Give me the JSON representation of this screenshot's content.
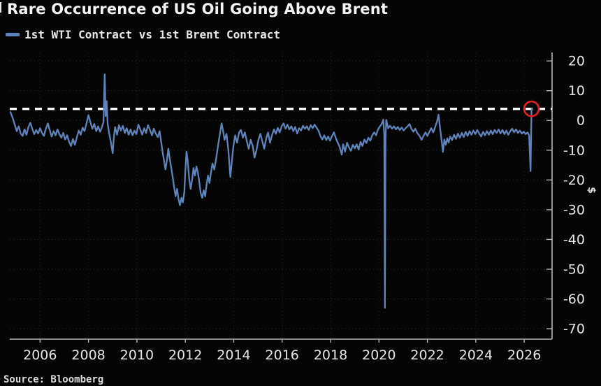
{
  "title": "Rare Occurrence of US Oil Going Above Brent",
  "legend": {
    "label": "1st WTI Contract vs 1st Brent Contract",
    "swatch_color": "#5e84ba"
  },
  "source": "Source: Bloomberg",
  "colors": {
    "background": "#050505",
    "line": "#5e84ba",
    "reference_line": "#ffffff",
    "annotation_circle": "#e02020",
    "axis": "#b5b5b5",
    "grid": "#2e2e2e",
    "tick_text": "#e6e6e6"
  },
  "chart_data": {
    "type": "line",
    "title": "Rare Occurrence of US Oil Going Above Brent",
    "xlabel": "",
    "ylabel": "$",
    "legend_position": "top-left",
    "grid": "dotted horizontal and vertical",
    "x_ticks": [
      2006,
      2008,
      2010,
      2012,
      2014,
      2016,
      2018,
      2020,
      2022,
      2024,
      2026
    ],
    "y_ticks": [
      20,
      10,
      0,
      -10,
      -20,
      -30,
      -40,
      -50,
      -60,
      -70
    ],
    "xlim": [
      2004.75,
      2027.15
    ],
    "ylim": [
      -73.5,
      22.85
    ],
    "reference_line": {
      "value": 3.9,
      "style": "dashed",
      "color": "#ffffff"
    },
    "annotation": {
      "type": "circle",
      "x": 2026.3,
      "y": 3.9,
      "color": "#e02020",
      "meaning": "latest value highlighted - WTI above Brent"
    },
    "series": [
      {
        "name": "1st WTI Contract vs 1st Brent Contract",
        "color": "#5e84ba",
        "points": [
          [
            2004.78,
            2.8
          ],
          [
            2004.88,
            0.6
          ],
          [
            2004.96,
            -1.6
          ],
          [
            2005.04,
            -3.6
          ],
          [
            2005.12,
            -2.0
          ],
          [
            2005.2,
            -4.4
          ],
          [
            2005.28,
            -5.2
          ],
          [
            2005.36,
            -3.0
          ],
          [
            2005.44,
            -4.8
          ],
          [
            2005.52,
            -2.2
          ],
          [
            2005.6,
            -0.8
          ],
          [
            2005.68,
            -2.8
          ],
          [
            2005.76,
            -4.6
          ],
          [
            2005.84,
            -3.2
          ],
          [
            2005.92,
            -4.4
          ],
          [
            2006.0,
            -2.6
          ],
          [
            2006.08,
            -4.2
          ],
          [
            2006.16,
            -5.2
          ],
          [
            2006.24,
            -2.8
          ],
          [
            2006.32,
            -1.0
          ],
          [
            2006.4,
            -3.2
          ],
          [
            2006.48,
            -5.4
          ],
          [
            2006.56,
            -3.6
          ],
          [
            2006.64,
            -5.0
          ],
          [
            2006.72,
            -3.0
          ],
          [
            2006.8,
            -4.6
          ],
          [
            2006.88,
            -5.8
          ],
          [
            2006.96,
            -4.2
          ],
          [
            2007.04,
            -6.4
          ],
          [
            2007.12,
            -5.0
          ],
          [
            2007.2,
            -7.2
          ],
          [
            2007.28,
            -8.6
          ],
          [
            2007.36,
            -6.2
          ],
          [
            2007.44,
            -8.2
          ],
          [
            2007.52,
            -5.6
          ],
          [
            2007.6,
            -3.4
          ],
          [
            2007.68,
            -4.8
          ],
          [
            2007.76,
            -2.4
          ],
          [
            2007.84,
            -3.6
          ],
          [
            2007.92,
            -1.0
          ],
          [
            2008.0,
            1.8
          ],
          [
            2008.08,
            -0.6
          ],
          [
            2008.16,
            -2.8
          ],
          [
            2008.24,
            -1.2
          ],
          [
            2008.32,
            -3.6
          ],
          [
            2008.4,
            -2.0
          ],
          [
            2008.48,
            -3.8
          ],
          [
            2008.56,
            -2.2
          ],
          [
            2008.62,
            -0.5
          ],
          [
            2008.67,
            15.5
          ],
          [
            2008.71,
            1.5
          ],
          [
            2008.75,
            6.5
          ],
          [
            2008.79,
            -1.0
          ],
          [
            2008.85,
            -4.0
          ],
          [
            2008.93,
            -7.5
          ],
          [
            2009.0,
            -11.0
          ],
          [
            2009.05,
            -5.5
          ],
          [
            2009.1,
            -2.2
          ],
          [
            2009.18,
            -4.8
          ],
          [
            2009.26,
            -1.6
          ],
          [
            2009.34,
            -3.4
          ],
          [
            2009.42,
            -1.8
          ],
          [
            2009.5,
            -4.2
          ],
          [
            2009.58,
            -2.6
          ],
          [
            2009.66,
            -4.8
          ],
          [
            2009.74,
            -3.0
          ],
          [
            2009.82,
            -5.0
          ],
          [
            2009.9,
            -3.4
          ],
          [
            2009.98,
            -4.6
          ],
          [
            2010.06,
            -1.4
          ],
          [
            2010.14,
            -3.0
          ],
          [
            2010.22,
            -4.8
          ],
          [
            2010.3,
            -2.6
          ],
          [
            2010.38,
            -4.2
          ],
          [
            2010.46,
            -1.6
          ],
          [
            2010.54,
            -3.2
          ],
          [
            2010.62,
            -5.0
          ],
          [
            2010.7,
            -2.8
          ],
          [
            2010.78,
            -4.4
          ],
          [
            2010.86,
            -5.6
          ],
          [
            2010.94,
            -3.6
          ],
          [
            2011.0,
            -7.0
          ],
          [
            2011.06,
            -10.5
          ],
          [
            2011.12,
            -13.5
          ],
          [
            2011.18,
            -16.5
          ],
          [
            2011.24,
            -13.5
          ],
          [
            2011.3,
            -9.5
          ],
          [
            2011.36,
            -13.0
          ],
          [
            2011.42,
            -16.0
          ],
          [
            2011.48,
            -19.0
          ],
          [
            2011.54,
            -22.5
          ],
          [
            2011.6,
            -25.5
          ],
          [
            2011.66,
            -23.0
          ],
          [
            2011.72,
            -26.5
          ],
          [
            2011.78,
            -28.5
          ],
          [
            2011.84,
            -26.0
          ],
          [
            2011.9,
            -27.5
          ],
          [
            2011.96,
            -24.0
          ],
          [
            2012.0,
            -17.0
          ],
          [
            2012.05,
            -10.5
          ],
          [
            2012.1,
            -13.5
          ],
          [
            2012.16,
            -19.5
          ],
          [
            2012.22,
            -23.0
          ],
          [
            2012.28,
            -20.0
          ],
          [
            2012.34,
            -16.0
          ],
          [
            2012.4,
            -18.5
          ],
          [
            2012.46,
            -15.5
          ],
          [
            2012.52,
            -17.5
          ],
          [
            2012.58,
            -21.0
          ],
          [
            2012.64,
            -24.5
          ],
          [
            2012.7,
            -26.0
          ],
          [
            2012.76,
            -23.5
          ],
          [
            2012.82,
            -25.5
          ],
          [
            2012.88,
            -21.5
          ],
          [
            2012.94,
            -18.5
          ],
          [
            2013.0,
            -21.0
          ],
          [
            2013.06,
            -17.5
          ],
          [
            2013.12,
            -14.5
          ],
          [
            2013.2,
            -16.5
          ],
          [
            2013.28,
            -12.5
          ],
          [
            2013.36,
            -8.0
          ],
          [
            2013.44,
            -4.0
          ],
          [
            2013.5,
            -1.0
          ],
          [
            2013.56,
            -3.5
          ],
          [
            2013.62,
            -6.5
          ],
          [
            2013.7,
            -4.5
          ],
          [
            2013.78,
            -10.0
          ],
          [
            2013.86,
            -19.0
          ],
          [
            2013.92,
            -14.0
          ],
          [
            2013.98,
            -9.0
          ],
          [
            2014.06,
            -5.0
          ],
          [
            2014.14,
            -7.5
          ],
          [
            2014.22,
            -4.0
          ],
          [
            2014.3,
            -3.2
          ],
          [
            2014.38,
            -5.8
          ],
          [
            2014.46,
            -4.0
          ],
          [
            2014.54,
            -7.0
          ],
          [
            2014.62,
            -9.5
          ],
          [
            2014.7,
            -6.5
          ],
          [
            2014.78,
            -8.5
          ],
          [
            2014.86,
            -12.5
          ],
          [
            2014.94,
            -10.0
          ],
          [
            2015.02,
            -6.5
          ],
          [
            2015.1,
            -4.5
          ],
          [
            2015.18,
            -7.0
          ],
          [
            2015.26,
            -9.5
          ],
          [
            2015.34,
            -6.0
          ],
          [
            2015.42,
            -4.0
          ],
          [
            2015.5,
            -7.5
          ],
          [
            2015.58,
            -5.0
          ],
          [
            2015.66,
            -3.0
          ],
          [
            2015.74,
            -4.5
          ],
          [
            2015.82,
            -2.5
          ],
          [
            2015.9,
            -4.0
          ],
          [
            2015.98,
            -2.0
          ],
          [
            2016.06,
            -1.0
          ],
          [
            2016.14,
            -2.8
          ],
          [
            2016.22,
            -1.4
          ],
          [
            2016.3,
            -3.0
          ],
          [
            2016.38,
            -2.0
          ],
          [
            2016.46,
            -3.6
          ],
          [
            2016.54,
            -2.2
          ],
          [
            2016.62,
            -4.4
          ],
          [
            2016.7,
            -2.6
          ],
          [
            2016.78,
            -3.4
          ],
          [
            2016.86,
            -1.8
          ],
          [
            2016.94,
            -2.8
          ],
          [
            2017.02,
            -2.0
          ],
          [
            2017.1,
            -3.2
          ],
          [
            2017.18,
            -1.6
          ],
          [
            2017.26,
            -2.6
          ],
          [
            2017.34,
            -1.4
          ],
          [
            2017.42,
            -2.4
          ],
          [
            2017.5,
            -3.4
          ],
          [
            2017.58,
            -5.2
          ],
          [
            2017.66,
            -6.4
          ],
          [
            2017.74,
            -5.0
          ],
          [
            2017.82,
            -6.6
          ],
          [
            2017.9,
            -5.4
          ],
          [
            2017.98,
            -6.8
          ],
          [
            2018.06,
            -5.2
          ],
          [
            2018.14,
            -4.0
          ],
          [
            2018.22,
            -6.0
          ],
          [
            2018.3,
            -7.5
          ],
          [
            2018.38,
            -9.0
          ],
          [
            2018.46,
            -11.5
          ],
          [
            2018.52,
            -8.0
          ],
          [
            2018.6,
            -10.5
          ],
          [
            2018.68,
            -7.5
          ],
          [
            2018.76,
            -9.0
          ],
          [
            2018.84,
            -10.2
          ],
          [
            2018.92,
            -8.2
          ],
          [
            2019.0,
            -9.4
          ],
          [
            2019.08,
            -8.0
          ],
          [
            2019.16,
            -9.8
          ],
          [
            2019.24,
            -7.2
          ],
          [
            2019.32,
            -8.6
          ],
          [
            2019.4,
            -6.4
          ],
          [
            2019.48,
            -7.6
          ],
          [
            2019.56,
            -5.8
          ],
          [
            2019.64,
            -6.8
          ],
          [
            2019.72,
            -5.0
          ],
          [
            2019.8,
            -4.0
          ],
          [
            2019.88,
            -5.0
          ],
          [
            2019.96,
            -3.0
          ],
          [
            2020.04,
            -2.0
          ],
          [
            2020.12,
            -1.0
          ],
          [
            2020.18,
            0.3
          ],
          [
            2020.22,
            -5.0
          ],
          [
            2020.245,
            -63.0
          ],
          [
            2020.27,
            -6.0
          ],
          [
            2020.3,
            0.2
          ],
          [
            2020.38,
            -2.6
          ],
          [
            2020.46,
            -1.8
          ],
          [
            2020.54,
            -2.8
          ],
          [
            2020.62,
            -2.0
          ],
          [
            2020.7,
            -3.0
          ],
          [
            2020.78,
            -2.2
          ],
          [
            2020.86,
            -3.2
          ],
          [
            2020.94,
            -2.4
          ],
          [
            2021.02,
            -3.4
          ],
          [
            2021.1,
            -2.6
          ],
          [
            2021.18,
            -2.0
          ],
          [
            2021.26,
            -1.2
          ],
          [
            2021.34,
            -2.8
          ],
          [
            2021.42,
            -3.8
          ],
          [
            2021.5,
            -2.8
          ],
          [
            2021.58,
            -4.2
          ],
          [
            2021.66,
            -5.0
          ],
          [
            2021.76,
            -6.5
          ],
          [
            2021.84,
            -5.2
          ],
          [
            2021.92,
            -4.0
          ],
          [
            2022.0,
            -5.2
          ],
          [
            2022.08,
            -3.8
          ],
          [
            2022.16,
            -2.6
          ],
          [
            2022.24,
            -4.0
          ],
          [
            2022.32,
            -2.2
          ],
          [
            2022.4,
            -0.4
          ],
          [
            2022.46,
            1.9
          ],
          [
            2022.52,
            -2.4
          ],
          [
            2022.58,
            -6.2
          ],
          [
            2022.64,
            -10.6
          ],
          [
            2022.7,
            -6.4
          ],
          [
            2022.76,
            -8.2
          ],
          [
            2022.82,
            -6.0
          ],
          [
            2022.88,
            -7.4
          ],
          [
            2022.94,
            -5.4
          ],
          [
            2023.02,
            -6.6
          ],
          [
            2023.1,
            -4.8
          ],
          [
            2023.18,
            -6.2
          ],
          [
            2023.26,
            -4.4
          ],
          [
            2023.34,
            -5.8
          ],
          [
            2023.42,
            -4.2
          ],
          [
            2023.5,
            -5.6
          ],
          [
            2023.58,
            -3.8
          ],
          [
            2023.66,
            -5.2
          ],
          [
            2023.74,
            -3.6
          ],
          [
            2023.82,
            -4.8
          ],
          [
            2023.9,
            -3.4
          ],
          [
            2023.98,
            -4.6
          ],
          [
            2024.06,
            -3.2
          ],
          [
            2024.14,
            -4.4
          ],
          [
            2024.22,
            -5.4
          ],
          [
            2024.3,
            -3.8
          ],
          [
            2024.38,
            -5.0
          ],
          [
            2024.46,
            -3.6
          ],
          [
            2024.54,
            -4.8
          ],
          [
            2024.62,
            -3.4
          ],
          [
            2024.7,
            -4.6
          ],
          [
            2024.78,
            -3.2
          ],
          [
            2024.86,
            -4.2
          ],
          [
            2024.94,
            -3.0
          ],
          [
            2025.02,
            -4.4
          ],
          [
            2025.1,
            -3.2
          ],
          [
            2025.18,
            -4.6
          ],
          [
            2025.26,
            -3.4
          ],
          [
            2025.34,
            -4.8
          ],
          [
            2025.42,
            -3.6
          ],
          [
            2025.5,
            -2.8
          ],
          [
            2025.58,
            -4.0
          ],
          [
            2025.66,
            -3.0
          ],
          [
            2025.74,
            -4.2
          ],
          [
            2025.82,
            -3.4
          ],
          [
            2025.9,
            -4.4
          ],
          [
            2025.98,
            -3.8
          ],
          [
            2026.06,
            -4.6
          ],
          [
            2026.14,
            -4.0
          ],
          [
            2026.2,
            -5.0
          ],
          [
            2026.26,
            -17.0
          ],
          [
            2026.3,
            3.9
          ]
        ]
      }
    ]
  }
}
